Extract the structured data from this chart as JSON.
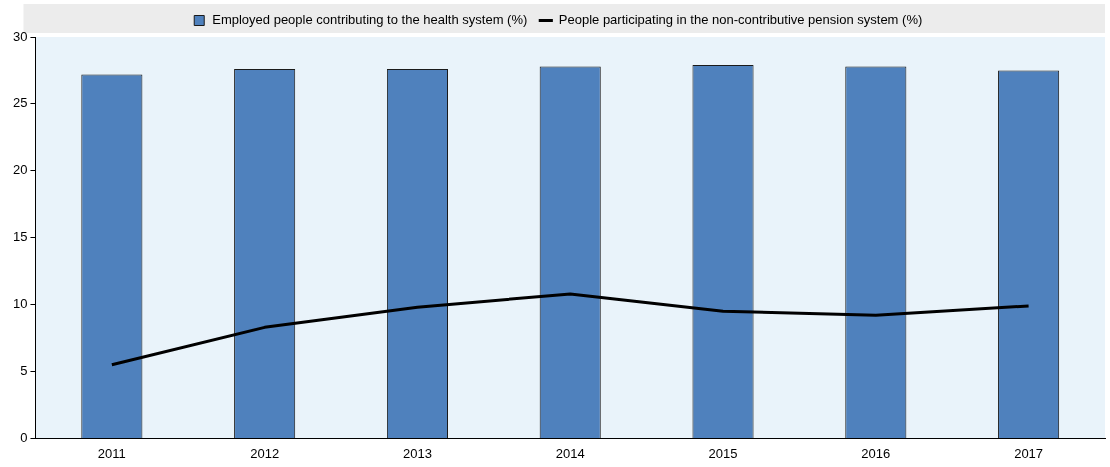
{
  "chart_data": {
    "type": "bar",
    "categories": [
      "2011",
      "2012",
      "2013",
      "2014",
      "2015",
      "2016",
      "2017"
    ],
    "series": [
      {
        "name": "Employed people contributing to the health system (%)",
        "color": "#4f81bd",
        "values": [
          27.2,
          27.6,
          27.6,
          27.8,
          27.9,
          27.8,
          27.5
        ]
      },
      {
        "name": "People participating in the non-contributive pension system (%)",
        "type": "line",
        "color": "#000000",
        "values": [
          5.5,
          8.3,
          9.8,
          10.8,
          9.5,
          9.2,
          9.9
        ]
      }
    ],
    "ylim": [
      0,
      30
    ],
    "yticks": [
      0,
      5,
      10,
      15,
      20,
      25,
      30
    ],
    "grid": false,
    "legend": "top",
    "marker": "none",
    "line_style": "solid"
  }
}
